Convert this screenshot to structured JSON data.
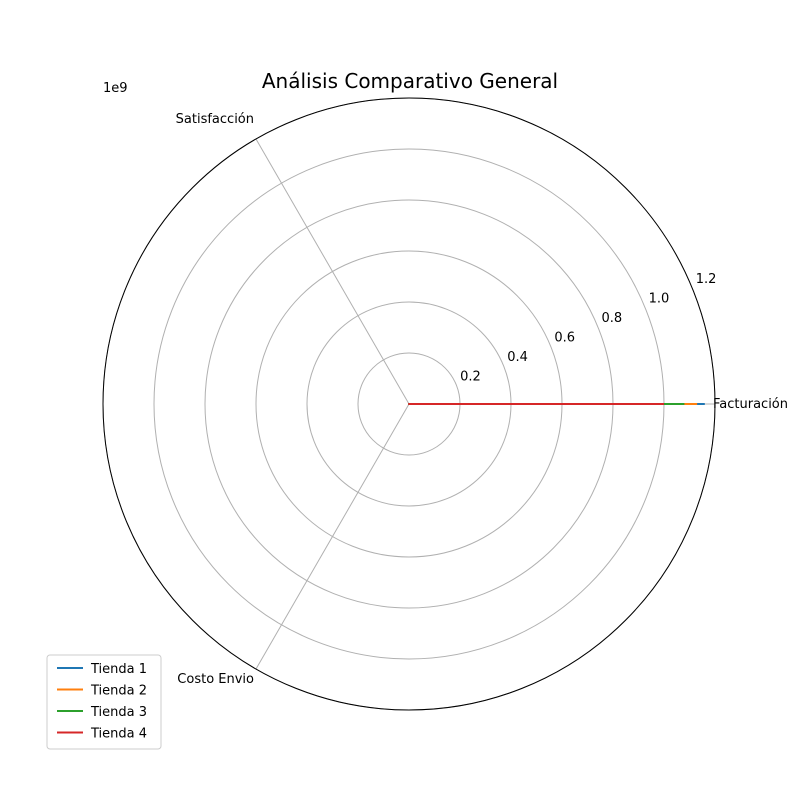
{
  "chart_data": {
    "type": "radar",
    "title": "Análisis Comparativo General",
    "offset_label": "1e9",
    "categories": [
      "Facturación",
      "Satisfacción",
      "Costo Envio"
    ],
    "radial_ticks": [
      "0.2",
      "0.4",
      "0.6",
      "0.8",
      "1.0",
      "1.2"
    ],
    "radial_tick_values": [
      0.2,
      0.4,
      0.6,
      0.8,
      1.0,
      1.2
    ],
    "rlim": [
      0,
      1.2
    ],
    "grid": true,
    "legend_position": "lower-left",
    "series": [
      {
        "name": "Tienda 1",
        "color": "#1f77b4",
        "values": [
          1.16,
          4e-09,
          3e-08
        ]
      },
      {
        "name": "Tienda 2",
        "color": "#ff7f0e",
        "values": [
          1.13,
          4e-09,
          3.2e-08
        ]
      },
      {
        "name": "Tienda 3",
        "color": "#2ca02c",
        "values": [
          1.08,
          4e-09,
          3.3e-08
        ]
      },
      {
        "name": "Tienda 4",
        "color": "#d62728",
        "values": [
          1.0,
          4e-09,
          3.4e-08
        ]
      }
    ]
  }
}
